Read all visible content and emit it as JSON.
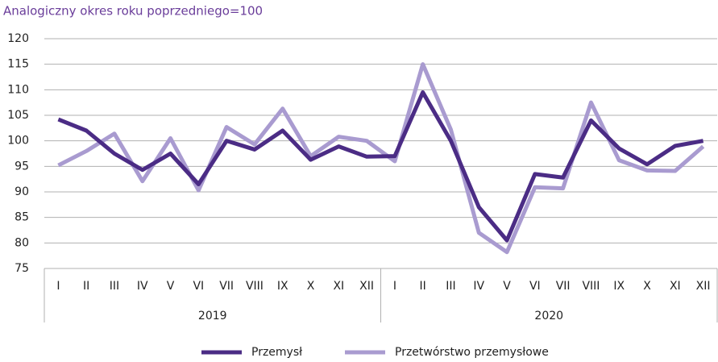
{
  "chart_data": {
    "type": "line",
    "title": "Analogiczny okres roku poprzedniego=100",
    "categories": [
      "I",
      "II",
      "III",
      "IV",
      "V",
      "VI",
      "VII",
      "VIII",
      "IX",
      "X",
      "XI",
      "XII",
      "I",
      "II",
      "III",
      "IV",
      "V",
      "VI",
      "VII",
      "VIII",
      "IX",
      "X",
      "XI",
      "XII"
    ],
    "groups": [
      "2019",
      "2020"
    ],
    "series": [
      {
        "name": "Przemysł",
        "color": "#4b2c85",
        "values": [
          104.2,
          102,
          97.5,
          94.3,
          97.5,
          91.5,
          100,
          98.3,
          102,
          96.3,
          98.9,
          96.9,
          97,
          109.5,
          100,
          87,
          80.5,
          93.5,
          92.8,
          104,
          98.5,
          95.4,
          99,
          100
        ]
      },
      {
        "name": "Przetwórstwo przemysłowe",
        "color": "#a99bd0",
        "values": [
          95.2,
          98,
          101.4,
          92.1,
          100.5,
          90.3,
          102.7,
          99.3,
          106.3,
          97,
          100.8,
          100,
          96,
          115,
          102.2,
          82,
          78.2,
          90.9,
          90.7,
          107.5,
          96.2,
          94.2,
          94.1,
          98.9
        ]
      }
    ],
    "ylim": [
      75,
      120
    ],
    "yticks": [
      75,
      80,
      85,
      90,
      95,
      100,
      105,
      110,
      115,
      120
    ],
    "grid": true,
    "legend": "bottom"
  }
}
